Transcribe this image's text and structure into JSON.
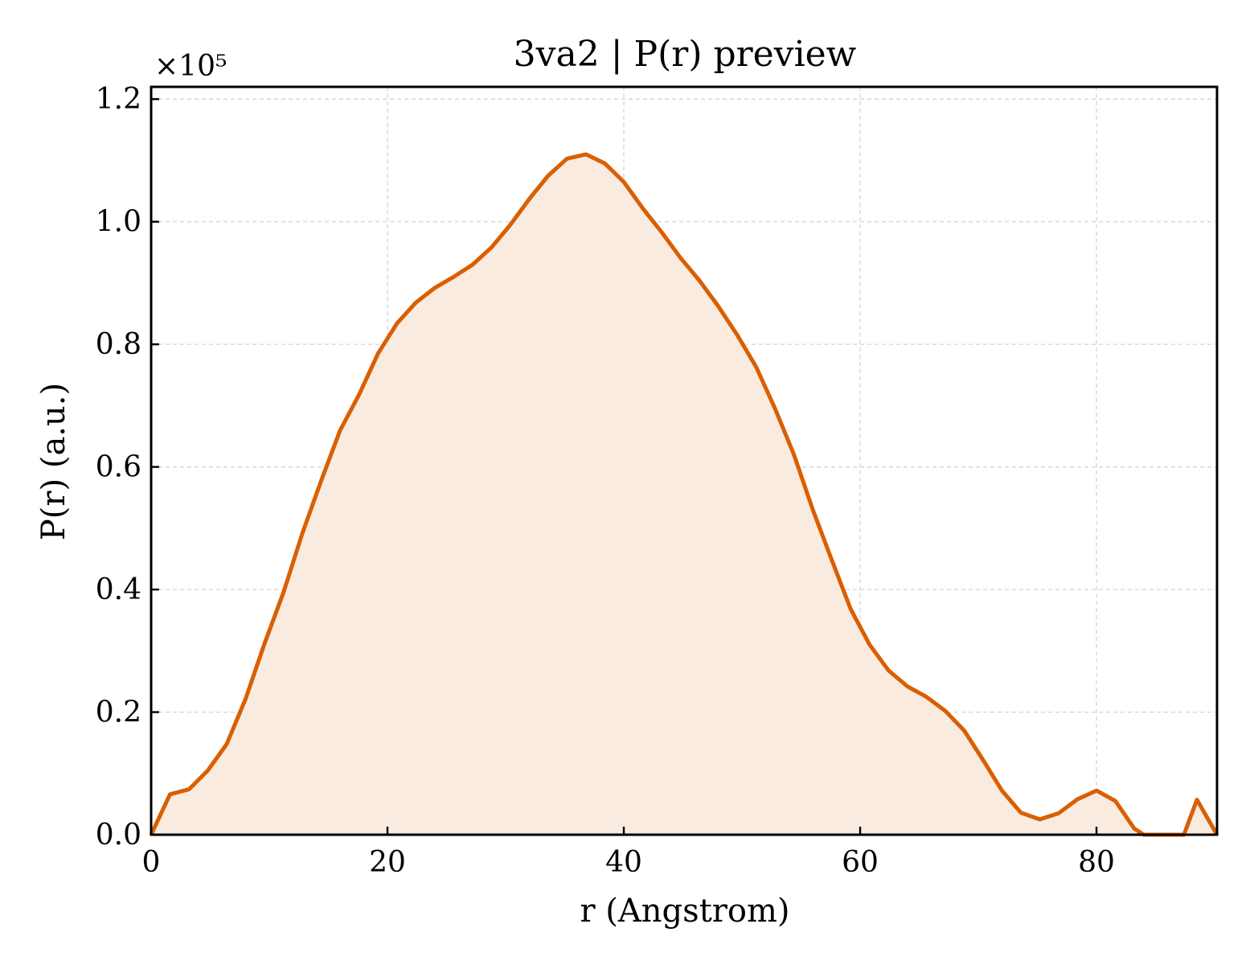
{
  "chart_data": {
    "type": "area",
    "title": "3va2 | P(r) preview",
    "xlabel": "r (Angstrom)",
    "ylabel": "P(r) (a.u.)",
    "y_multiplier_label": "×10⁵",
    "xlim": [
      0,
      90.2
    ],
    "ylim": [
      0,
      1.22
    ],
    "xticks": [
      0,
      20,
      40,
      60,
      80
    ],
    "xtick_labels": [
      "0",
      "20",
      "40",
      "60",
      "80"
    ],
    "yticks": [
      0.0,
      0.2,
      0.4,
      0.6,
      0.8,
      1.0,
      1.2
    ],
    "ytick_labels": [
      "0.0",
      "0.2",
      "0.4",
      "0.6",
      "0.8",
      "1.0",
      "1.2"
    ],
    "grid": true,
    "line_color": "#d95f02",
    "fill_color": "#f9ebe0",
    "series": [
      {
        "x": [
          0,
          1.6,
          3.2,
          4.8,
          6.4,
          8.0,
          9.6,
          11.2,
          12.8,
          14.4,
          16.0,
          17.6,
          19.2,
          20.8,
          22.4,
          24.0,
          25.6,
          27.2,
          28.8,
          30.4,
          32.0,
          33.6,
          35.2,
          36.8,
          38.4,
          40.0,
          41.6,
          43.2,
          44.8,
          46.4,
          48.0,
          49.6,
          51.2,
          52.8,
          54.4,
          56.0,
          57.6,
          59.2,
          60.8,
          62.4,
          64.0,
          65.6,
          67.2,
          68.8,
          70.4,
          72.0,
          73.6,
          75.2,
          76.8,
          78.4,
          80.0,
          81.6,
          83.2,
          84.0,
          87.4,
          88.5,
          90.2
        ],
        "y": [
          0.0,
          0.066,
          0.074,
          0.105,
          0.148,
          0.222,
          0.312,
          0.395,
          0.492,
          0.578,
          0.66,
          0.718,
          0.785,
          0.834,
          0.868,
          0.892,
          0.91,
          0.93,
          0.958,
          0.995,
          1.037,
          1.075,
          1.103,
          1.11,
          1.095,
          1.065,
          1.022,
          0.983,
          0.941,
          0.904,
          0.862,
          0.815,
          0.763,
          0.695,
          0.62,
          0.53,
          0.448,
          0.368,
          0.31,
          0.268,
          0.242,
          0.225,
          0.202,
          0.17,
          0.122,
          0.072,
          0.036,
          0.025,
          0.035,
          0.058,
          0.072,
          0.055,
          0.01,
          0.0,
          0.0,
          0.057,
          0.0
        ]
      }
    ]
  }
}
